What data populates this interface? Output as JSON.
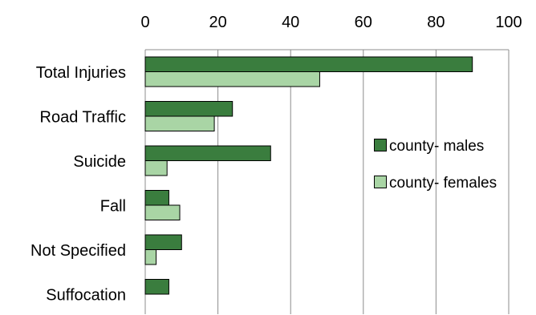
{
  "chart_data": {
    "type": "bar",
    "orientation": "horizontal",
    "title": "",
    "xlabel": "",
    "ylabel": "",
    "xlim": [
      0,
      100
    ],
    "x_ticks": [
      "0",
      "20",
      "40",
      "60",
      "80",
      "100"
    ],
    "x_tick_values": [
      0,
      20,
      40,
      60,
      80,
      100
    ],
    "x_axis_position": "top",
    "grid": "vertical gridlines",
    "legend_position": "right",
    "categories": [
      "Total Injuries",
      "Road Traffic",
      "Suicide",
      "Fall",
      "Not Specified",
      "Suffocation"
    ],
    "series": [
      {
        "name": "county- males",
        "color": "#3a7d3e",
        "values": [
          90,
          24,
          34.5,
          6.5,
          10,
          6.5
        ]
      },
      {
        "name": "county- females",
        "color": "#a9d5a5",
        "values": [
          48,
          19,
          6,
          9.5,
          3,
          0
        ]
      }
    ]
  }
}
